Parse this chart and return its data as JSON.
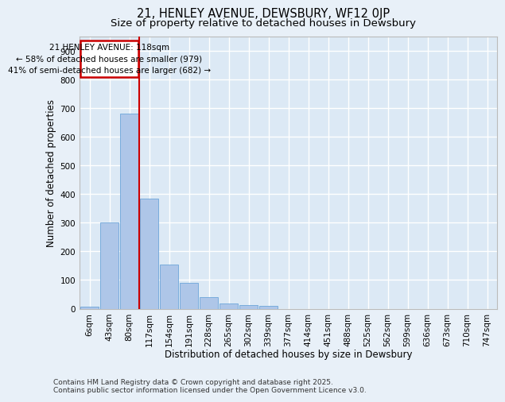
{
  "title_line1": "21, HENLEY AVENUE, DEWSBURY, WF12 0JP",
  "title_line2": "Size of property relative to detached houses in Dewsbury",
  "xlabel": "Distribution of detached houses by size in Dewsbury",
  "ylabel": "Number of detached properties",
  "categories": [
    "6sqm",
    "43sqm",
    "80sqm",
    "117sqm",
    "154sqm",
    "191sqm",
    "228sqm",
    "265sqm",
    "302sqm",
    "339sqm",
    "377sqm",
    "414sqm",
    "451sqm",
    "488sqm",
    "525sqm",
    "562sqm",
    "599sqm",
    "636sqm",
    "673sqm",
    "710sqm",
    "747sqm"
  ],
  "values": [
    8,
    300,
    680,
    385,
    155,
    90,
    40,
    18,
    13,
    11,
    0,
    0,
    0,
    0,
    0,
    0,
    0,
    0,
    0,
    0,
    0
  ],
  "bar_color": "#aec6e8",
  "bar_edge_color": "#5b9bd5",
  "background_color": "#dce9f5",
  "fig_background_color": "#e8f0f8",
  "grid_color": "#ffffff",
  "vline_color": "#cc0000",
  "vline_position": 2.5,
  "annotation_box_text": "21 HENLEY AVENUE: 118sqm\n← 58% of detached houses are smaller (979)\n41% of semi-detached houses are larger (682) →",
  "annotation_box_color": "#cc0000",
  "annotation_box_fill": "#ffffff",
  "footer_text": "Contains HM Land Registry data © Crown copyright and database right 2025.\nContains public sector information licensed under the Open Government Licence v3.0.",
  "ylim": [
    0,
    950
  ],
  "yticks": [
    0,
    100,
    200,
    300,
    400,
    500,
    600,
    700,
    800,
    900
  ],
  "title_fontsize": 10.5,
  "subtitle_fontsize": 9.5,
  "axis_label_fontsize": 8.5,
  "tick_fontsize": 7.5,
  "footer_fontsize": 6.5,
  "annot_fontsize": 7.5
}
